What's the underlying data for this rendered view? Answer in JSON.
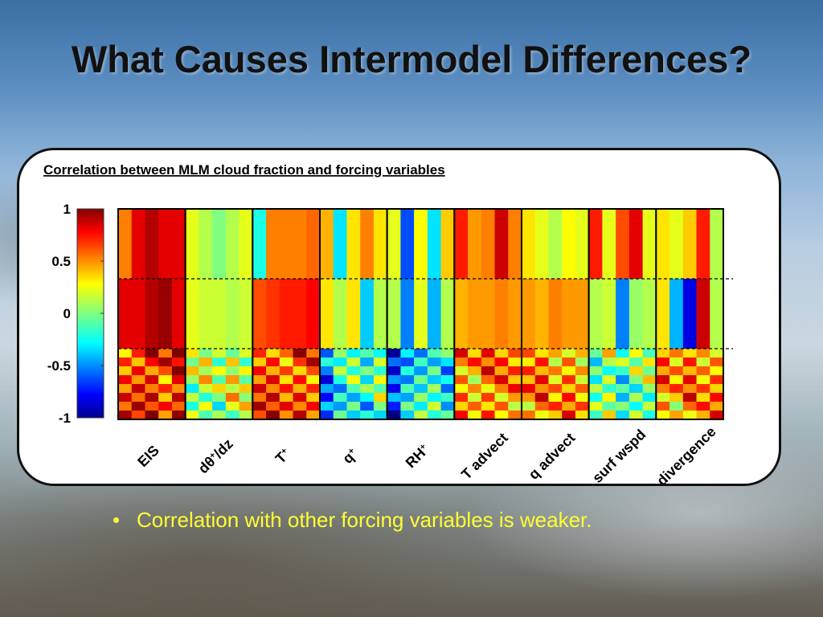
{
  "slide": {
    "title": "What Causes Intermodel Differences?",
    "bullet": "Correlation with other forcing variables is weaker.",
    "bullet_marker": "•"
  },
  "chart_data": {
    "type": "heatmap",
    "title": "Correlation between MLM cloud fraction and forcing variables",
    "colorbar": {
      "ticks": [
        1,
        0.5,
        0,
        -0.5,
        -1
      ],
      "tick_labels": [
        "1",
        "0.5",
        "0",
        "-0.5",
        "-1"
      ],
      "range": [
        -1,
        1
      ],
      "colormap": "jet"
    },
    "variables": [
      {
        "label": "EIS",
        "sup": "",
        "label_after": "",
        "top": [
          0.5,
          0.8,
          0.9,
          0.8,
          0.8
        ],
        "mid": [
          0.8,
          0.8,
          0.9,
          0.95,
          0.8
        ],
        "bottom": [
          0.6,
          0.7,
          0.75,
          0.6,
          0.8
        ]
      },
      {
        "label": "d",
        "sup": "+",
        "label_after": "/dz",
        "label_theta": "θ",
        "top": [
          0.2,
          0.1,
          0.0,
          0.1,
          0.2
        ],
        "mid": [
          0.2,
          0.15,
          0.15,
          0.1,
          0.15
        ],
        "bottom": [
          0.05,
          0.15,
          0.0,
          0.2,
          0.1
        ]
      },
      {
        "label": "T",
        "sup": "+",
        "label_after": "",
        "top": [
          -0.2,
          0.5,
          0.5,
          0.5,
          0.55
        ],
        "mid": [
          0.6,
          0.65,
          0.7,
          0.7,
          0.75
        ],
        "bottom": [
          0.6,
          0.65,
          0.55,
          0.65,
          0.6
        ]
      },
      {
        "label": "q",
        "sup": "+",
        "label_after": "",
        "top": [
          0.4,
          -0.3,
          0.3,
          0.5,
          0.3
        ],
        "mid": [
          0.3,
          0.1,
          0.3,
          -0.35,
          0.1
        ],
        "bottom": [
          -0.5,
          -0.2,
          -0.1,
          -0.25,
          0.0
        ]
      },
      {
        "label": "RH",
        "sup": "+",
        "label_after": "",
        "top": [
          0.2,
          -0.6,
          0.25,
          -0.3,
          0.35
        ],
        "mid": [
          0.1,
          -0.5,
          0.2,
          -0.4,
          0.1
        ],
        "bottom": [
          -0.7,
          -0.35,
          -0.2,
          -0.1,
          -0.3
        ]
      },
      {
        "label": "T advect",
        "sup": "",
        "label_after": "",
        "top": [
          0.7,
          0.45,
          0.5,
          0.85,
          0.5
        ],
        "mid": [
          0.4,
          0.45,
          0.45,
          0.5,
          0.45
        ],
        "bottom": [
          0.5,
          0.4,
          0.55,
          0.5,
          0.45
        ]
      },
      {
        "label": "q advect",
        "sup": "",
        "label_after": "",
        "top": [
          0.3,
          0.2,
          0.1,
          0.25,
          0.2
        ],
        "mid": [
          0.45,
          0.4,
          0.5,
          0.45,
          0.45
        ],
        "bottom": [
          0.45,
          0.55,
          0.35,
          0.5,
          0.4
        ]
      },
      {
        "label": "surf wspd",
        "sup": "",
        "label_after": "",
        "top": [
          0.7,
          0.2,
          0.6,
          0.8,
          0.2
        ],
        "mid": [
          0.1,
          0.15,
          -0.5,
          0.05,
          0.1
        ],
        "bottom": [
          -0.05,
          0.1,
          -0.15,
          0.0,
          0.05
        ]
      },
      {
        "label": "divergence",
        "sup": "",
        "label_after": "",
        "top": [
          0.3,
          0.2,
          0.35,
          0.7,
          0.1
        ],
        "mid": [
          0.3,
          -0.4,
          -0.8,
          0.85,
          0.1
        ],
        "bottom": [
          0.5,
          0.35,
          0.55,
          0.4,
          0.5
        ]
      }
    ]
  }
}
